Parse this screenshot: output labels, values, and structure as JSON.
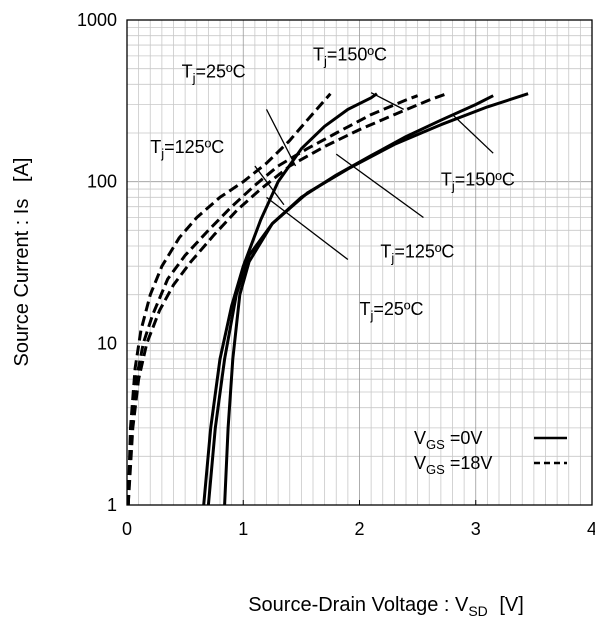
{
  "chart_data": {
    "type": "line",
    "title": "",
    "xlabel": {
      "main": "Source-Drain Voltage : V",
      "sub": "SD",
      "unit": "[V]"
    },
    "ylabel": "Source Current : Is   [A]",
    "xlim": [
      0,
      4
    ],
    "ylim": [
      1,
      1000
    ],
    "yscale": "log",
    "x_ticks": [
      "0",
      "1",
      "2",
      "3",
      "4"
    ],
    "y_ticks": [
      "1",
      "10",
      "100",
      "1000"
    ],
    "grid": true,
    "legend": {
      "placement": "bottom-right",
      "entries": [
        {
          "main": "V",
          "sub": "GS",
          "rest": " =0V",
          "style": "solid"
        },
        {
          "main": "V",
          "sub": "GS",
          "rest": " =18V",
          "style": "dashed"
        }
      ]
    },
    "series": [
      {
        "style": "solid",
        "condition": "VGS=0V, Tj=25ºC",
        "points": [
          [
            0.66,
            1
          ],
          [
            0.72,
            3
          ],
          [
            0.8,
            8
          ],
          [
            0.9,
            17
          ],
          [
            1.0,
            30
          ],
          [
            1.15,
            58
          ],
          [
            1.3,
            100
          ],
          [
            1.5,
            160
          ],
          [
            1.7,
            220
          ],
          [
            1.9,
            280
          ],
          [
            2.1,
            330
          ],
          [
            2.15,
            350
          ]
        ]
      },
      {
        "style": "solid",
        "condition": "VGS=0V, Tj=125ºC",
        "points": [
          [
            0.7,
            1
          ],
          [
            0.76,
            3
          ],
          [
            0.84,
            8
          ],
          [
            0.94,
            20
          ],
          [
            1.05,
            35
          ],
          [
            1.25,
            55
          ],
          [
            1.5,
            80
          ],
          [
            1.8,
            110
          ],
          [
            2.1,
            145
          ],
          [
            2.4,
            190
          ],
          [
            2.7,
            240
          ],
          [
            3.0,
            300
          ],
          [
            3.15,
            340
          ]
        ]
      },
      {
        "style": "solid",
        "condition": "VGS=0V, Tj=150ºC",
        "points": [
          [
            0.84,
            1
          ],
          [
            0.87,
            3
          ],
          [
            0.91,
            8
          ],
          [
            0.97,
            20
          ],
          [
            1.05,
            32
          ],
          [
            1.25,
            55
          ],
          [
            1.55,
            85
          ],
          [
            1.9,
            120
          ],
          [
            2.3,
            170
          ],
          [
            2.7,
            225
          ],
          [
            3.1,
            290
          ],
          [
            3.45,
            350
          ]
        ]
      },
      {
        "style": "dashed",
        "condition": "VGS=18V, Tj=25ºC",
        "points": [
          [
            0.01,
            1
          ],
          [
            0.03,
            3
          ],
          [
            0.07,
            7
          ],
          [
            0.12,
            12
          ],
          [
            0.2,
            20
          ],
          [
            0.3,
            30
          ],
          [
            0.45,
            45
          ],
          [
            0.6,
            60
          ],
          [
            0.8,
            80
          ],
          [
            1.0,
            100
          ],
          [
            1.2,
            130
          ],
          [
            1.4,
            180
          ],
          [
            1.55,
            240
          ],
          [
            1.75,
            350
          ]
        ]
      },
      {
        "style": "dashed",
        "condition": "VGS=18V, Tj=125ºC",
        "points": [
          [
            0.01,
            1
          ],
          [
            0.04,
            3
          ],
          [
            0.08,
            6
          ],
          [
            0.14,
            10
          ],
          [
            0.22,
            15
          ],
          [
            0.35,
            25
          ],
          [
            0.5,
            35
          ],
          [
            0.7,
            50
          ],
          [
            0.9,
            70
          ],
          [
            1.1,
            95
          ],
          [
            1.3,
            125
          ],
          [
            1.55,
            160
          ],
          [
            1.8,
            200
          ],
          [
            2.1,
            260
          ],
          [
            2.4,
            320
          ],
          [
            2.5,
            340
          ]
        ]
      },
      {
        "style": "dashed",
        "condition": "VGS=18V, Tj=150ºC",
        "points": [
          [
            0.01,
            1
          ],
          [
            0.05,
            3
          ],
          [
            0.1,
            6
          ],
          [
            0.17,
            10
          ],
          [
            0.28,
            16
          ],
          [
            0.4,
            23
          ],
          [
            0.55,
            32
          ],
          [
            0.75,
            47
          ],
          [
            0.95,
            67
          ],
          [
            1.15,
            90
          ],
          [
            1.4,
            125
          ],
          [
            1.7,
            165
          ],
          [
            2.0,
            210
          ],
          [
            2.3,
            260
          ],
          [
            2.6,
            320
          ],
          [
            2.75,
            350
          ]
        ]
      }
    ],
    "annotations": [
      {
        "main": "T",
        "sub": "j",
        "rest": "=25ºC",
        "label_x": 0.47,
        "label_y": 440,
        "pointer": [
          [
            1.2,
            280
          ],
          [
            1.45,
            125
          ]
        ]
      },
      {
        "main": "T",
        "sub": "j",
        "rest": "=150ºC",
        "label_x": 1.6,
        "label_y": 560,
        "pointer": [
          [
            2.1,
            355
          ],
          [
            2.38,
            280
          ]
        ]
      },
      {
        "main": "T",
        "sub": "j",
        "rest": "=125ºC",
        "label_x": 0.2,
        "label_y": 150,
        "pointer": [
          [
            1.1,
            125
          ],
          [
            1.35,
            72
          ]
        ]
      },
      {
        "main": "T",
        "sub": "j",
        "rest": "=150ºC",
        "label_x": 2.7,
        "label_y": 95,
        "pointer": [
          [
            2.8,
            260
          ],
          [
            3.15,
            150
          ]
        ]
      },
      {
        "main": "T",
        "sub": "j",
        "rest": "=125ºC",
        "label_x": 2.18,
        "label_y": 34,
        "pointer": [
          [
            1.8,
            148
          ],
          [
            2.55,
            60
          ]
        ]
      },
      {
        "main": "T",
        "sub": "j",
        "rest": "=25ºC",
        "label_x": 2.0,
        "label_y": 15,
        "pointer": [
          [
            1.2,
            80
          ],
          [
            1.9,
            33
          ]
        ]
      }
    ]
  }
}
